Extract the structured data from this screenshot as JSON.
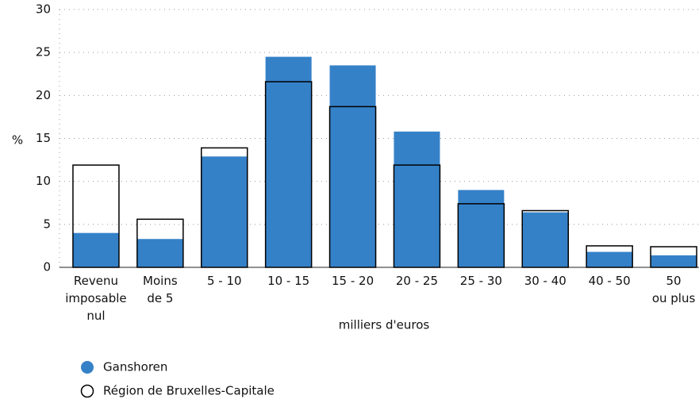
{
  "chart_data": {
    "type": "bar",
    "categories": [
      [
        "Revenu",
        "imposable",
        "nul"
      ],
      [
        "Moins",
        "de 5"
      ],
      [
        "5 - 10"
      ],
      [
        "10 - 15"
      ],
      [
        "15 - 20"
      ],
      [
        "20 - 25"
      ],
      [
        "25 - 30"
      ],
      [
        "30 - 40"
      ],
      [
        "40 - 50"
      ],
      [
        "50",
        "ou plus"
      ]
    ],
    "series": [
      {
        "name": "Ganshoren",
        "color": "#3581c8",
        "values": [
          4.0,
          3.3,
          12.9,
          24.5,
          23.5,
          15.8,
          9.0,
          6.4,
          1.8,
          1.4
        ]
      },
      {
        "name": "Région de Bruxelles-Capitale",
        "color": "#000000",
        "values": [
          11.9,
          5.6,
          13.9,
          21.6,
          18.7,
          11.9,
          7.4,
          6.6,
          2.5,
          2.4
        ]
      }
    ],
    "ylabel": "%",
    "xlabel": "milliers d'euros",
    "ylim": [
      0,
      30
    ],
    "yticks": [
      0,
      5,
      10,
      15,
      20,
      25,
      30
    ],
    "grid": true
  }
}
